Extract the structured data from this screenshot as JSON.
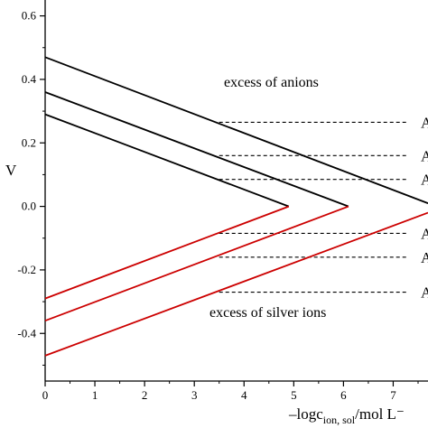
{
  "chart_data": {
    "type": "line",
    "ylabel": "V",
    "xlabel_parts": [
      "–logc",
      "ion, sol",
      "/mol L⁻"
    ],
    "xlim": [
      0,
      7.7
    ],
    "ylim": [
      -0.55,
      0.65
    ],
    "x_ticks": [
      0,
      1,
      2,
      3,
      4,
      5,
      6,
      7
    ],
    "y_ticks": [
      -0.4,
      -0.2,
      0.0,
      0.2,
      0.4,
      0.6
    ],
    "y_tick_labels": [
      "-0.4",
      "-0.2",
      "0.0",
      "0.2",
      "0.4",
      "0.6"
    ],
    "annotations": {
      "upper": "excess of anions",
      "lower": "excess of silver ions"
    },
    "series": [
      {
        "color": "#000000",
        "points": [
          [
            0,
            0.29
          ],
          [
            4.9,
            0.0
          ]
        ]
      },
      {
        "color": "#000000",
        "points": [
          [
            0,
            0.36
          ],
          [
            6.1,
            0.0
          ]
        ]
      },
      {
        "color": "#000000",
        "points": [
          [
            0,
            0.47
          ],
          [
            7.7,
            0.01
          ]
        ]
      },
      {
        "color": "#cc0000",
        "points": [
          [
            0,
            -0.29
          ],
          [
            4.9,
            0.0
          ]
        ]
      },
      {
        "color": "#cc0000",
        "points": [
          [
            0,
            -0.36
          ],
          [
            6.1,
            0.0
          ]
        ]
      },
      {
        "color": "#cc0000",
        "points": [
          [
            0,
            -0.47
          ],
          [
            7.7,
            -0.02
          ]
        ]
      }
    ],
    "reference_lines": [
      {
        "y": 0.265,
        "label": "A"
      },
      {
        "y": 0.16,
        "label": "Ag"
      },
      {
        "y": 0.085,
        "label": "Ag"
      },
      {
        "y": -0.085,
        "label": "Ag"
      },
      {
        "y": -0.16,
        "label": "Ag"
      },
      {
        "y": -0.27,
        "label": "A"
      }
    ],
    "reference_line_start_x": 3.5,
    "reference_line_end_x": 7.3
  }
}
